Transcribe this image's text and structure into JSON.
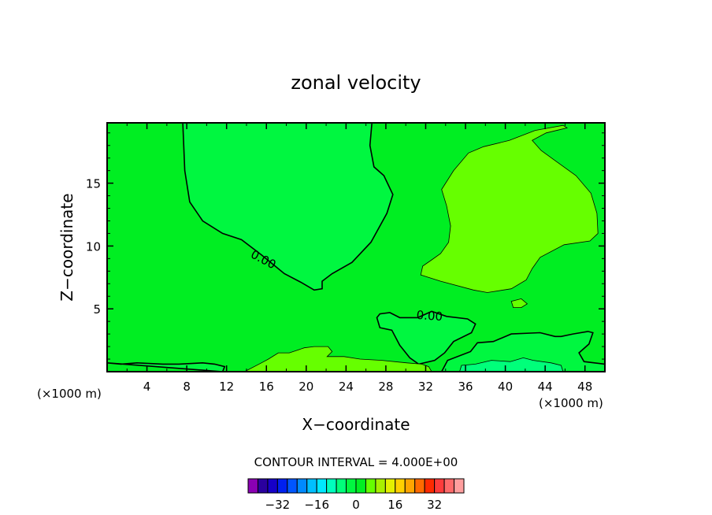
{
  "chart_data": {
    "type": "heatmap",
    "title": "zonal velocity",
    "xlabel": "X−coordinate",
    "ylabel": "Z−coordinate",
    "x_units_left": "(×1000 m)",
    "x_units_right": "(×1000 m)",
    "xlim": [
      0,
      50
    ],
    "ylim": [
      0,
      19.8
    ],
    "x_ticks": [
      4,
      8,
      12,
      16,
      20,
      24,
      28,
      32,
      36,
      40,
      44,
      48
    ],
    "y_ticks": [
      5,
      10,
      15
    ],
    "x_tick_labels": [
      "4",
      "8",
      "12",
      "16",
      "20",
      "24",
      "28",
      "32",
      "36",
      "40",
      "44",
      "48"
    ],
    "y_tick_labels": [
      "5",
      "10",
      "15"
    ],
    "background_fill": "#00ee22",
    "contours": [
      {
        "level": 0.0,
        "label": "0.00",
        "fill": "#00f740",
        "points": [
          [
            7.6,
            19.8
          ],
          [
            7.8,
            16
          ],
          [
            8.3,
            13.5
          ],
          [
            9.6,
            12
          ],
          [
            11.6,
            11
          ],
          [
            13.5,
            10.5
          ],
          [
            15.5,
            9.3
          ],
          [
            17.8,
            7.8
          ],
          [
            19.5,
            7.1
          ],
          [
            20.8,
            6.5
          ],
          [
            21.6,
            6.6
          ],
          [
            21.6,
            7.2
          ],
          [
            22.6,
            7.8
          ],
          [
            24.6,
            8.7
          ],
          [
            26.5,
            10.3
          ],
          [
            28.1,
            12.6
          ],
          [
            28.7,
            14.1
          ],
          [
            27.8,
            15.6
          ],
          [
            26.8,
            16.3
          ],
          [
            26.4,
            18
          ],
          [
            26.6,
            19.8
          ]
        ]
      },
      {
        "level": 4.0,
        "label": "",
        "fill": "#66ff00",
        "points": [
          [
            31.5,
            7.7
          ],
          [
            33.5,
            7.2
          ],
          [
            36.8,
            6.5
          ],
          [
            38.2,
            6.3
          ],
          [
            40.6,
            6.6
          ],
          [
            42.1,
            7.3
          ],
          [
            42.7,
            8.2
          ],
          [
            43.5,
            9.1
          ],
          [
            45.9,
            10.1
          ],
          [
            48.5,
            10.4
          ],
          [
            49.3,
            11
          ],
          [
            49.2,
            12.6
          ],
          [
            48.6,
            14.2
          ],
          [
            47.1,
            15.6
          ],
          [
            45,
            16.8
          ],
          [
            43.6,
            17.6
          ],
          [
            42.7,
            18.4
          ],
          [
            44.1,
            19
          ],
          [
            46.2,
            19.4
          ],
          [
            45.8,
            19.6
          ],
          [
            43,
            19.2
          ],
          [
            40.4,
            18.4
          ],
          [
            37.8,
            17.9
          ],
          [
            36.3,
            17.4
          ],
          [
            34.8,
            16
          ],
          [
            33.6,
            14.5
          ],
          [
            34.1,
            13.2
          ],
          [
            34.5,
            11.6
          ],
          [
            34.3,
            10.3
          ],
          [
            33.5,
            9.4
          ],
          [
            32.6,
            8.9
          ],
          [
            31.7,
            8.4
          ]
        ]
      },
      {
        "level": 4.0,
        "label": "",
        "fill": "#66ff00",
        "points": [
          [
            40.6,
            5.6
          ],
          [
            41.6,
            5.8
          ],
          [
            42.2,
            5.4
          ],
          [
            41.6,
            5.1
          ],
          [
            40.8,
            5.1
          ]
        ]
      },
      {
        "level": 0.0,
        "label": "0.00",
        "fill": "#00f740",
        "points": [
          [
            27.1,
            4.3
          ],
          [
            27.4,
            4.6
          ],
          [
            28.4,
            4.7
          ],
          [
            29.4,
            4.3
          ],
          [
            31.2,
            4.3
          ],
          [
            32.6,
            4.8
          ],
          [
            34.1,
            4.4
          ],
          [
            36.2,
            4.2
          ],
          [
            37,
            3.8
          ],
          [
            36.6,
            3.1
          ],
          [
            34.8,
            2.4
          ],
          [
            33.9,
            1.5
          ],
          [
            32.9,
            0.9
          ],
          [
            31.3,
            0.6
          ],
          [
            30.4,
            1.1
          ],
          [
            29.4,
            2.1
          ],
          [
            28.6,
            3.3
          ],
          [
            27.4,
            3.5
          ]
        ]
      },
      {
        "level": 0.0,
        "label": "",
        "fill": "#00f740",
        "points": [
          [
            33.6,
            0
          ],
          [
            34.2,
            0.9
          ],
          [
            36.5,
            1.6
          ],
          [
            37.2,
            2.3
          ],
          [
            38.8,
            2.4
          ],
          [
            40.6,
            3
          ],
          [
            43.5,
            3.1
          ],
          [
            45,
            2.8
          ],
          [
            45.6,
            2.8
          ],
          [
            46.8,
            3
          ],
          [
            48.3,
            3.2
          ],
          [
            48.8,
            3.1
          ],
          [
            48.4,
            2.2
          ],
          [
            47.4,
            1.5
          ],
          [
            47.9,
            0.8
          ],
          [
            50,
            0.6
          ],
          [
            50,
            0
          ]
        ]
      },
      {
        "level": -4.0,
        "label": "",
        "fill": "#00ff7a",
        "points": [
          [
            35.4,
            0
          ],
          [
            35.6,
            0.5
          ],
          [
            37,
            0.6
          ],
          [
            38.6,
            0.9
          ],
          [
            40.5,
            0.8
          ],
          [
            41.8,
            1.1
          ],
          [
            42.8,
            0.9
          ],
          [
            44.6,
            0.7
          ],
          [
            45.6,
            0.5
          ],
          [
            45.8,
            0
          ]
        ]
      },
      {
        "level": 4.0,
        "label": "",
        "fill": "#66ff00",
        "points": [
          [
            13.8,
            0
          ],
          [
            15.5,
            0.7
          ],
          [
            16.2,
            1
          ],
          [
            17.2,
            1.5
          ],
          [
            18.3,
            1.5
          ],
          [
            19.8,
            1.9
          ],
          [
            20.8,
            2
          ],
          [
            22.2,
            2
          ],
          [
            22.6,
            1.6
          ],
          [
            22.1,
            1.2
          ],
          [
            23.8,
            1.2
          ],
          [
            25.4,
            1
          ],
          [
            27.6,
            0.9
          ],
          [
            30.1,
            0.7
          ],
          [
            31.6,
            0.6
          ],
          [
            32.3,
            0.4
          ],
          [
            32.6,
            0
          ]
        ]
      },
      {
        "level": 0.0,
        "label": "",
        "fill": "#00f740",
        "points": [
          [
            0,
            0.7
          ],
          [
            1.4,
            0.6
          ],
          [
            3,
            0.7
          ],
          [
            5.6,
            0.6
          ],
          [
            7.2,
            0.6
          ],
          [
            9.6,
            0.7
          ],
          [
            10.8,
            0.6
          ],
          [
            11.8,
            0.4
          ],
          [
            11.6,
            0
          ]
        ]
      }
    ],
    "colorbar": {
      "title": "CONTOUR INTERVAL = 4.000E+00",
      "colors": [
        "#8b00b3",
        "#2a009e",
        "#1600c8",
        "#0020f0",
        "#0056ff",
        "#008aff",
        "#00bfff",
        "#00e8ff",
        "#00ffbd",
        "#00ff7a",
        "#00f740",
        "#00ee22",
        "#66ff00",
        "#a8f000",
        "#e4f000",
        "#ffd000",
        "#ffa500",
        "#ff6a00",
        "#ff2a00",
        "#ff3b3b",
        "#ff6a6a",
        "#ff9e9e"
      ],
      "tick_labels": [
        "−32",
        "−16",
        "0",
        "16",
        "32"
      ],
      "tick_values": [
        -32,
        -16,
        0,
        16,
        32
      ],
      "range": [
        -44,
        44
      ]
    }
  }
}
